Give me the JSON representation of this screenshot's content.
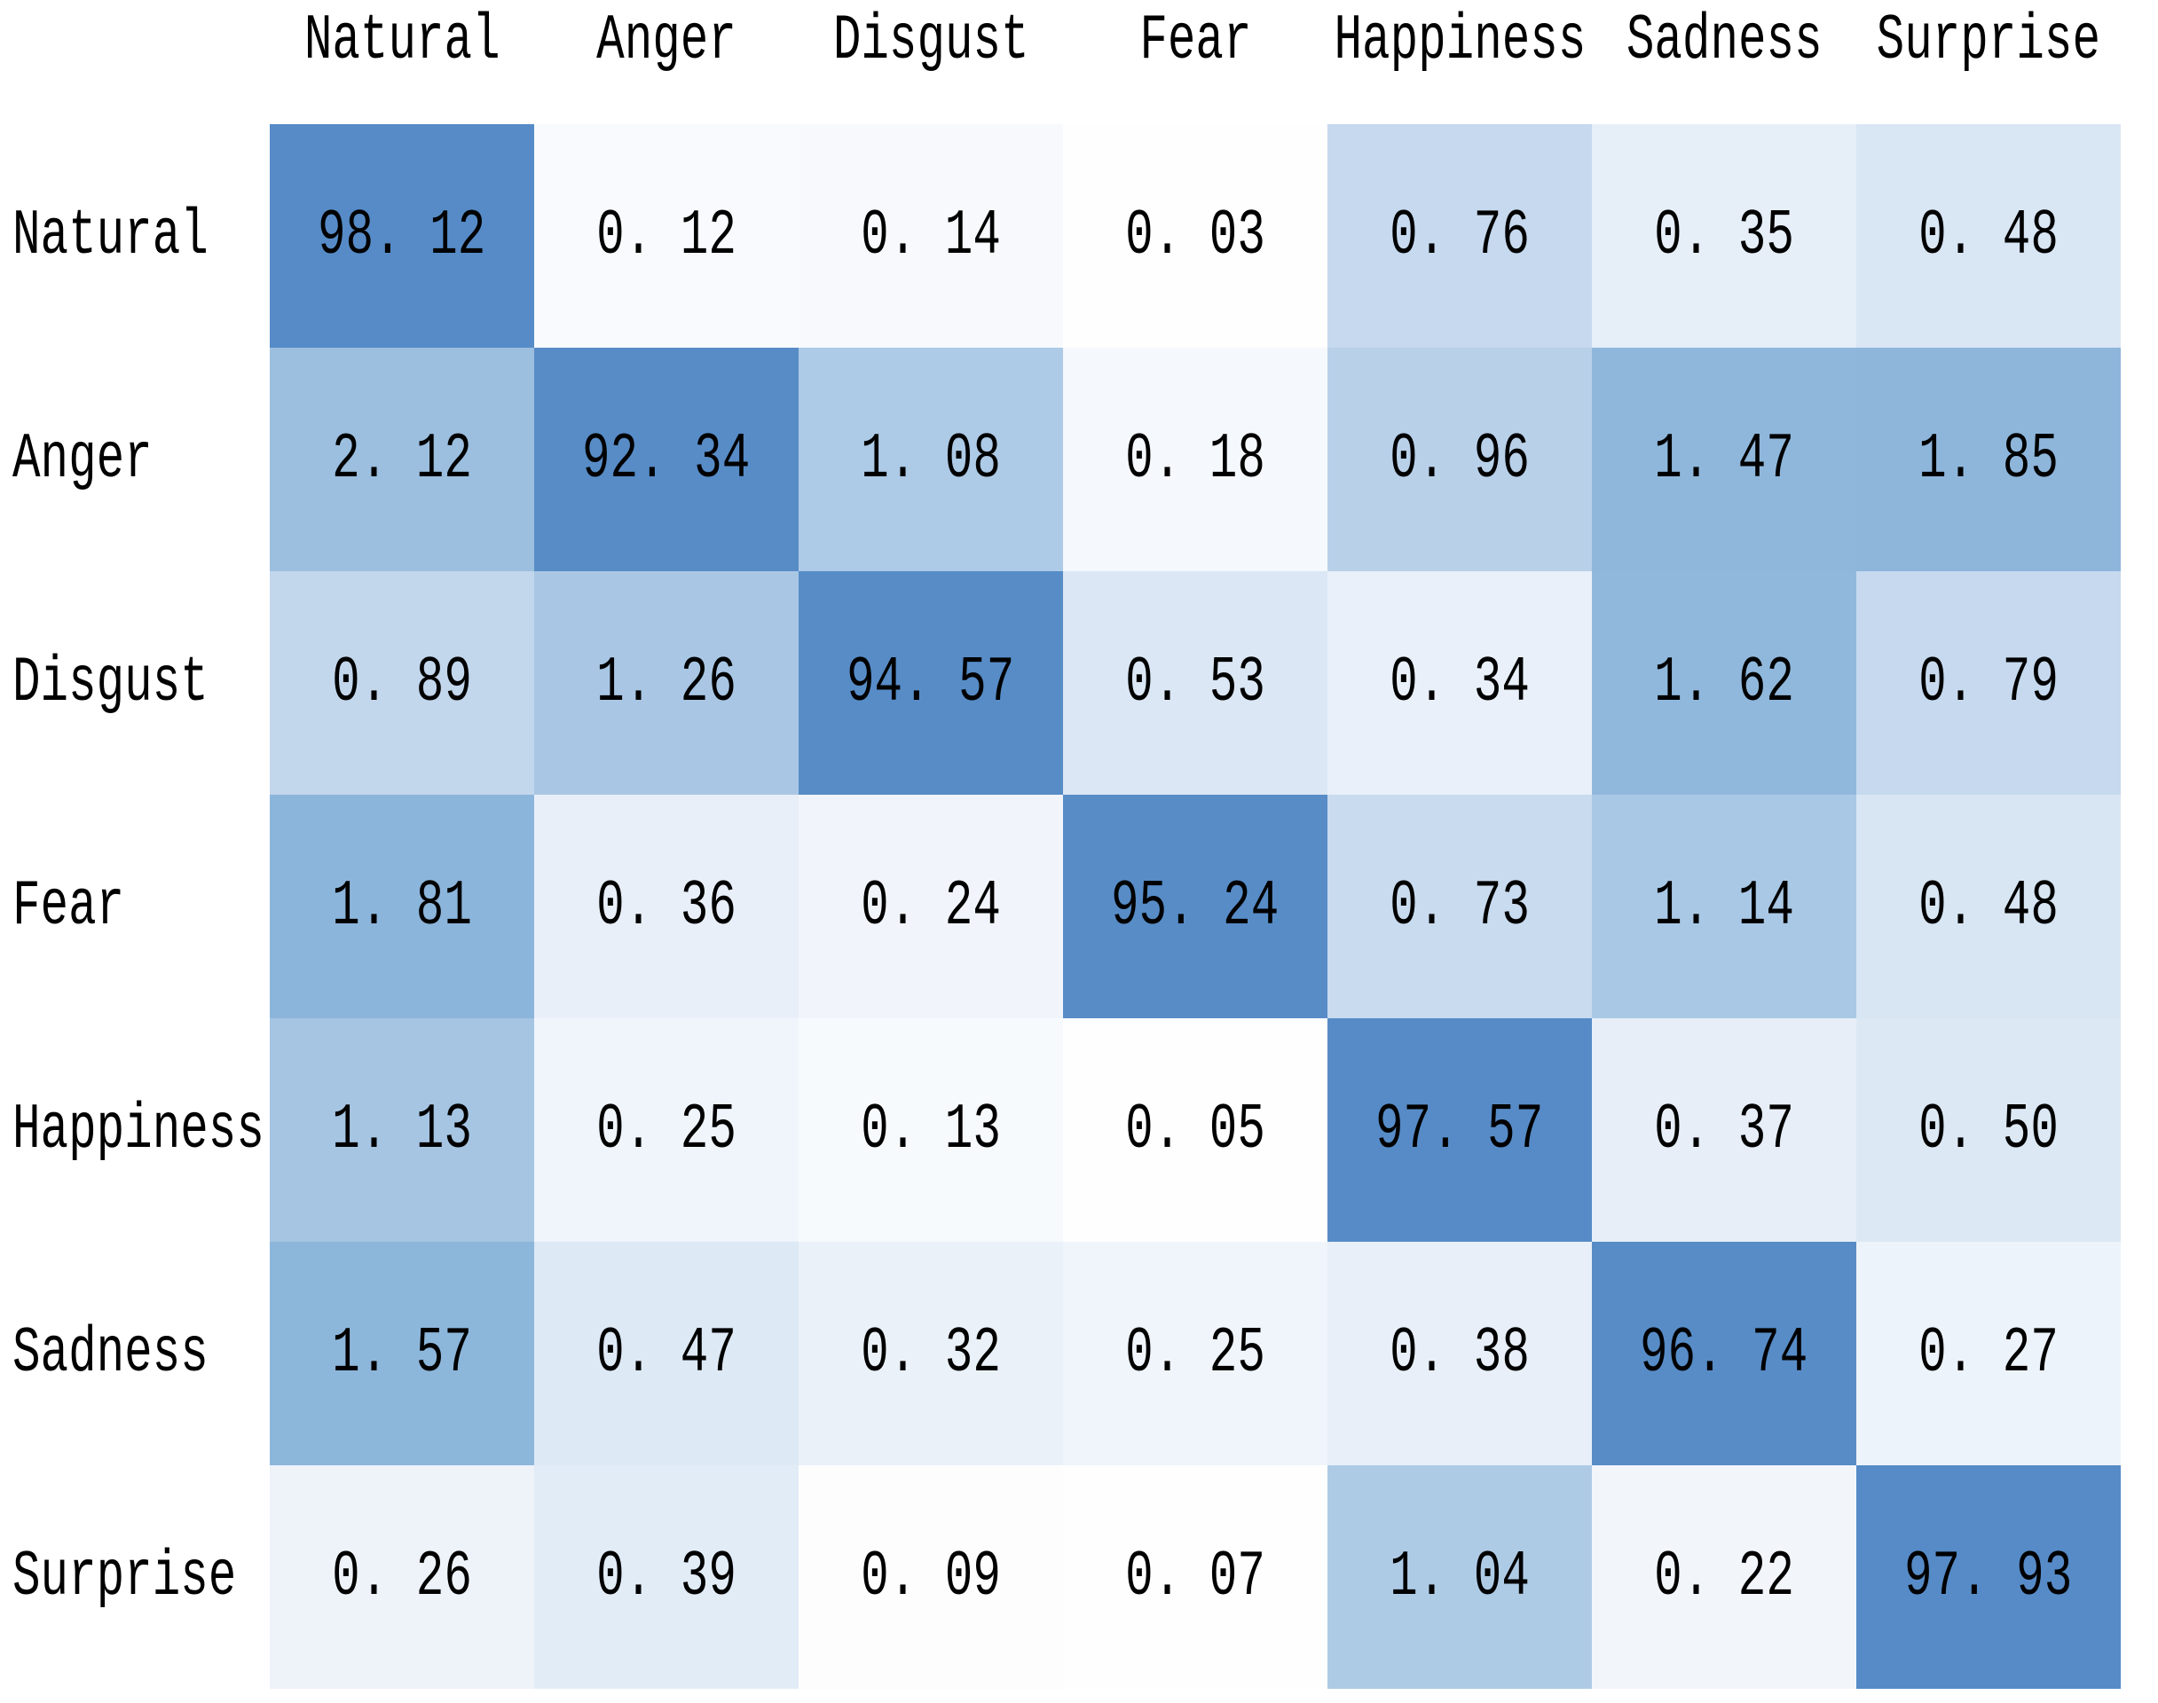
{
  "figure": {
    "background_color": "#ffffff",
    "text_color": "#000000"
  },
  "chart_data": {
    "type": "heatmap",
    "title": "",
    "description": "Confusion matrix of emotion recognition results, values in percent",
    "col_labels": [
      "Natural",
      "Anger",
      "Disgust",
      "Fear",
      "Happiness",
      "Sadness",
      "Surprise"
    ],
    "row_labels": [
      "Natural",
      "Anger",
      "Disgust",
      "Fear",
      "Happiness",
      "Sadness",
      "Surprise"
    ],
    "value_unit": "percent",
    "value_format": "two_decimals_space_after_point",
    "matrix": [
      [
        98.12,
        0.12,
        0.14,
        0.03,
        0.76,
        0.35,
        0.48
      ],
      [
        2.12,
        92.34,
        1.08,
        0.18,
        0.96,
        1.47,
        1.85
      ],
      [
        0.89,
        1.26,
        94.57,
        0.53,
        0.34,
        1.62,
        0.79
      ],
      [
        1.81,
        0.36,
        0.24,
        95.24,
        0.73,
        1.14,
        0.48
      ],
      [
        1.13,
        0.25,
        0.13,
        0.05,
        97.57,
        0.37,
        0.5
      ],
      [
        1.57,
        0.47,
        0.32,
        0.25,
        0.38,
        96.74,
        0.27
      ],
      [
        0.26,
        0.39,
        0.09,
        0.07,
        1.04,
        0.22,
        97.93
      ]
    ],
    "cell_colors": [
      [
        "#568bc7",
        "#f8fafd",
        "#f7f9fc",
        "#fefeff",
        "#c6d9ee",
        "#e6eef8",
        "#d9e6f4"
      ],
      [
        "#9cbfdf",
        "#578cc7",
        "#adcae6",
        "#f5f8fc",
        "#b9d0e9",
        "#8fb7db",
        "#8eb6db"
      ],
      [
        "#c2d6ec",
        "#a9c7e4",
        "#578cc7",
        "#dbe7f4",
        "#e9f0f9",
        "#90b8dc",
        "#c6d9ee"
      ],
      [
        "#8cb5db",
        "#e9eff8",
        "#f1f5fb",
        "#578cc7",
        "#c9dbee",
        "#a9c8e5",
        "#d8e6f3"
      ],
      [
        "#a5c5e3",
        "#eff5fb",
        "#f7fafd",
        "#fefeff",
        "#568bc7",
        "#e7eef8",
        "#dce8f4"
      ],
      [
        "#8db6db",
        "#dde9f5",
        "#eaf1f9",
        "#f0f5fb",
        "#e8eff8",
        "#578cc7",
        "#edf3fa"
      ],
      [
        "#eef3fa",
        "#e2ecf7",
        "#fdfdfe",
        "#fefeff",
        "#aecbe6",
        "#f2f6fb",
        "#568bc7"
      ]
    ],
    "color_scale": {
      "low_color": "#ffffff",
      "high_color": "#568bc7",
      "scale": "logarithmic-like, white near 0 to dark blue near 100"
    },
    "legend": "none",
    "grid_lines": "off"
  }
}
